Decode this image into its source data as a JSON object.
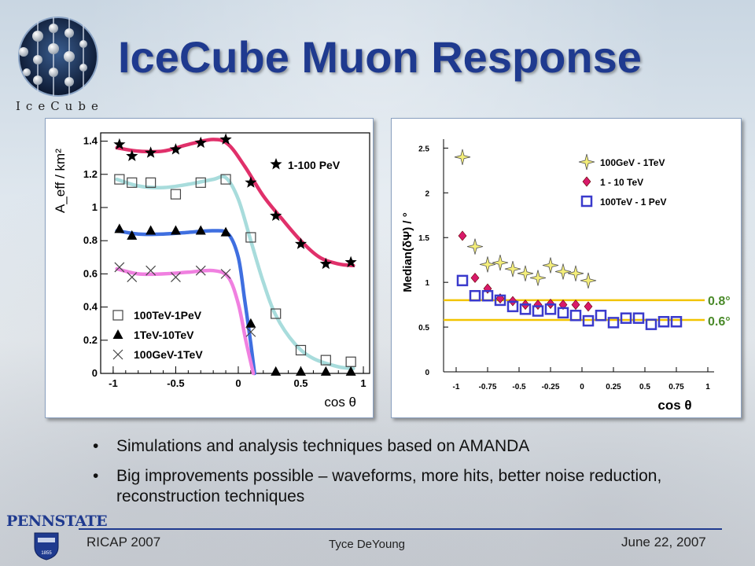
{
  "slide": {
    "title": "IceCube Muon Response",
    "logo_text": "IceCube",
    "bullets": [
      "Simulations and analysis techniques based on AMANDA",
      "Big improvements possible – waveforms, more hits, better noise reduction, reconstruction techniques"
    ],
    "footer": {
      "left": "RICAP 2007",
      "center": "Tyce DeYoung",
      "right": "June 22, 2007",
      "institution": "PENNSTATE",
      "shield_year": "1855"
    }
  },
  "colors": {
    "title": "#1f3a8f",
    "curve_1_100PeV": "#e0306a",
    "curve_100TeV_1PeV": "#a8dcdc",
    "curve_1TeV_10TeV": "#3f6fe0",
    "curve_100GeV_1TeV": "#f080e0",
    "diamond": "#d81a6a",
    "star4": "#f4ee7a",
    "open_square": "#3a3acc",
    "hline": "#f2c400",
    "hline_label": "#4a8a2a"
  },
  "chart_data": [
    {
      "type": "scatter",
      "xlabel": "cos θ",
      "ylabel": "A_eff / km²",
      "xlim": [
        -1.1,
        1.05
      ],
      "ylim": [
        0,
        1.45
      ],
      "xticks": [
        -1,
        -0.5,
        0,
        0.5,
        1
      ],
      "xtick_labels": [
        "-1",
        "-0.5",
        "0",
        "0.5",
        "1"
      ],
      "yticks": [
        0,
        0.2,
        0.4,
        0.6,
        0.8,
        1,
        1.2,
        1.4
      ],
      "ytick_labels": [
        "0",
        "0.2",
        "0.4",
        "0.6",
        "0.8",
        "1",
        "1.2",
        "1.4"
      ],
      "legend_top": "1-100 PeV",
      "legend_bottom": [
        "100TeV-1PeV",
        "1TeV-10TeV",
        "100GeV-1TeV"
      ],
      "series": [
        {
          "name": "1-100 PeV",
          "marker": "star",
          "points": [
            [
              -0.95,
              1.38
            ],
            [
              -0.85,
              1.31
            ],
            [
              -0.7,
              1.33
            ],
            [
              -0.5,
              1.35
            ],
            [
              -0.3,
              1.39
            ],
            [
              -0.1,
              1.41
            ],
            [
              0.1,
              1.15
            ],
            [
              0.3,
              0.95
            ],
            [
              0.5,
              0.78
            ],
            [
              0.7,
              0.66
            ],
            [
              0.9,
              0.67
            ]
          ],
          "curve": [
            [
              -0.97,
              1.36
            ],
            [
              -0.8,
              1.34
            ],
            [
              -0.6,
              1.34
            ],
            [
              -0.4,
              1.38
            ],
            [
              -0.2,
              1.41
            ],
            [
              -0.08,
              1.38
            ],
            [
              0.05,
              1.25
            ],
            [
              0.2,
              1.07
            ],
            [
              0.35,
              0.93
            ],
            [
              0.5,
              0.8
            ],
            [
              0.65,
              0.7
            ],
            [
              0.8,
              0.66
            ],
            [
              0.92,
              0.65
            ]
          ]
        },
        {
          "name": "100TeV-1PeV",
          "marker": "open-square",
          "points": [
            [
              -0.95,
              1.17
            ],
            [
              -0.85,
              1.15
            ],
            [
              -0.7,
              1.15
            ],
            [
              -0.5,
              1.08
            ],
            [
              -0.3,
              1.15
            ],
            [
              -0.1,
              1.17
            ],
            [
              0.1,
              0.82
            ],
            [
              0.3,
              0.36
            ],
            [
              0.5,
              0.14
            ],
            [
              0.7,
              0.08
            ],
            [
              0.9,
              0.07
            ]
          ],
          "curve": [
            [
              -0.97,
              1.17
            ],
            [
              -0.8,
              1.13
            ],
            [
              -0.6,
              1.12
            ],
            [
              -0.4,
              1.14
            ],
            [
              -0.2,
              1.17
            ],
            [
              -0.1,
              1.18
            ],
            [
              0.0,
              1.05
            ],
            [
              0.1,
              0.8
            ],
            [
              0.2,
              0.55
            ],
            [
              0.3,
              0.35
            ],
            [
              0.45,
              0.18
            ],
            [
              0.6,
              0.09
            ],
            [
              0.8,
              0.04
            ],
            [
              0.92,
              0.03
            ]
          ]
        },
        {
          "name": "1TeV-10TeV",
          "marker": "filled-triangle",
          "points": [
            [
              -0.95,
              0.87
            ],
            [
              -0.85,
              0.83
            ],
            [
              -0.7,
              0.86
            ],
            [
              -0.5,
              0.86
            ],
            [
              -0.3,
              0.86
            ],
            [
              -0.1,
              0.85
            ],
            [
              0.1,
              0.3
            ],
            [
              0.3,
              0.01
            ],
            [
              0.5,
              0.01
            ],
            [
              0.7,
              0.01
            ],
            [
              0.9,
              0.01
            ]
          ],
          "curve": [
            [
              -0.97,
              0.86
            ],
            [
              -0.8,
              0.84
            ],
            [
              -0.6,
              0.84
            ],
            [
              -0.4,
              0.85
            ],
            [
              -0.2,
              0.86
            ],
            [
              -0.08,
              0.84
            ],
            [
              0.0,
              0.7
            ],
            [
              0.05,
              0.45
            ],
            [
              0.1,
              0.18
            ],
            [
              0.13,
              0.0
            ]
          ]
        },
        {
          "name": "100GeV-1TeV",
          "marker": "x",
          "points": [
            [
              -0.95,
              0.64
            ],
            [
              -0.85,
              0.58
            ],
            [
              -0.7,
              0.62
            ],
            [
              -0.5,
              0.58
            ],
            [
              -0.3,
              0.62
            ],
            [
              -0.1,
              0.6
            ],
            [
              0.1,
              0.25
            ]
          ],
          "curve": [
            [
              -0.97,
              0.63
            ],
            [
              -0.8,
              0.6
            ],
            [
              -0.6,
              0.6
            ],
            [
              -0.4,
              0.61
            ],
            [
              -0.2,
              0.62
            ],
            [
              -0.08,
              0.58
            ],
            [
              0.0,
              0.42
            ],
            [
              0.06,
              0.2
            ],
            [
              0.12,
              0.0
            ]
          ]
        }
      ]
    },
    {
      "type": "scatter",
      "xlabel": "cos θ",
      "ylabel": "Median(δΨ) / °",
      "xlim": [
        -1.1,
        1.05
      ],
      "ylim": [
        0,
        2.6
      ],
      "xticks": [
        -1,
        -0.75,
        -0.5,
        -0.25,
        0,
        0.25,
        0.5,
        0.75,
        1
      ],
      "xtick_labels": [
        "-1",
        "-0.75",
        "-0.5",
        "-0.25",
        "0",
        "0.25",
        "0.5",
        "0.75",
        "1"
      ],
      "yticks": [
        0,
        0.5,
        1,
        1.5,
        2,
        2.5
      ],
      "ytick_labels": [
        "0",
        "0.5",
        "1",
        "1.5",
        "2",
        "2.5"
      ],
      "hlines": [
        {
          "y": 0.8,
          "label": "0.8°"
        },
        {
          "y": 0.58,
          "label": "0.6°"
        }
      ],
      "series": [
        {
          "name": "100GeV - 1TeV",
          "marker": "star4",
          "points": [
            [
              -0.95,
              2.4
            ],
            [
              -0.85,
              1.4
            ],
            [
              -0.75,
              1.2
            ],
            [
              -0.65,
              1.22
            ],
            [
              -0.55,
              1.15
            ],
            [
              -0.45,
              1.1
            ],
            [
              -0.35,
              1.05
            ],
            [
              -0.25,
              1.19
            ],
            [
              -0.15,
              1.12
            ],
            [
              -0.05,
              1.1
            ],
            [
              0.05,
              1.02
            ]
          ]
        },
        {
          "name": "1 - 10 TeV",
          "marker": "diamond",
          "points": [
            [
              -0.95,
              1.52
            ],
            [
              -0.85,
              1.05
            ],
            [
              -0.75,
              0.93
            ],
            [
              -0.65,
              0.82
            ],
            [
              -0.55,
              0.79
            ],
            [
              -0.45,
              0.75
            ],
            [
              -0.35,
              0.75
            ],
            [
              -0.25,
              0.76
            ],
            [
              -0.15,
              0.75
            ],
            [
              -0.05,
              0.75
            ],
            [
              0.05,
              0.73
            ]
          ]
        },
        {
          "name": "100TeV - 1 PeV",
          "marker": "open-square",
          "points": [
            [
              -0.95,
              1.02
            ],
            [
              -0.85,
              0.85
            ],
            [
              -0.75,
              0.85
            ],
            [
              -0.65,
              0.8
            ],
            [
              -0.55,
              0.73
            ],
            [
              -0.45,
              0.7
            ],
            [
              -0.35,
              0.68
            ],
            [
              -0.25,
              0.7
            ],
            [
              -0.15,
              0.66
            ],
            [
              -0.05,
              0.63
            ],
            [
              0.05,
              0.57
            ],
            [
              0.15,
              0.63
            ],
            [
              0.25,
              0.55
            ],
            [
              0.35,
              0.6
            ],
            [
              0.45,
              0.6
            ],
            [
              0.55,
              0.53
            ],
            [
              0.65,
              0.56
            ],
            [
              0.75,
              0.56
            ]
          ]
        }
      ]
    }
  ]
}
